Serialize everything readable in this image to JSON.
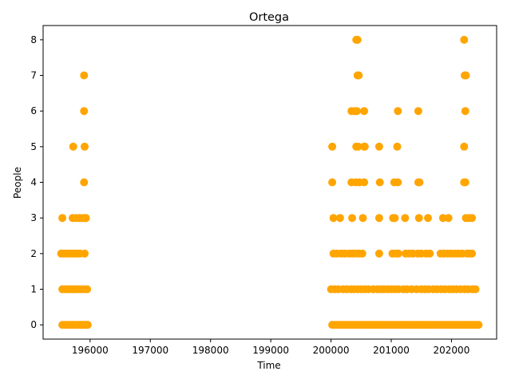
{
  "chart_data": {
    "type": "scatter",
    "title": "Ortega",
    "xlabel": "Time",
    "ylabel": "People",
    "xlim": [
      195220,
      202750
    ],
    "ylim": [
      -0.4,
      8.4
    ],
    "xticks": [
      196000,
      197000,
      198000,
      199000,
      200000,
      201000,
      202000
    ],
    "xtick_labels": [
      "196000",
      "197000",
      "198000",
      "199000",
      "200000",
      "201000",
      "202000"
    ],
    "yticks": [
      0,
      1,
      2,
      3,
      4,
      5,
      6,
      7,
      8
    ],
    "ytick_labels": [
      "0",
      "1",
      "2",
      "3",
      "4",
      "5",
      "6",
      "7",
      "8"
    ],
    "grid": false,
    "legend": "none",
    "marker_color": "#FFA500",
    "series": [
      {
        "x": [
          195540,
          195580,
          195620,
          195660,
          195690,
          195720,
          195760,
          195800,
          195830,
          195860,
          195900,
          195940,
          195960,
          195540,
          195590,
          195640,
          195680,
          195720,
          195760,
          195800,
          195850,
          195900,
          195950,
          195520,
          195560,
          195610,
          195650,
          195700,
          195740,
          195780,
          195830,
          195910,
          195540,
          195710,
          195770,
          195820,
          195870,
          195910,
          195930,
          195900,
          195720,
          195910,
          195900,
          195900,
          200020,
          200060,
          200100,
          200140,
          200180,
          200220,
          200260,
          200300,
          200340,
          200380,
          200420,
          200460,
          200500,
          200540,
          200580,
          200620,
          200660,
          200700,
          200740,
          200780,
          200820,
          200860,
          200900,
          200940,
          200980,
          201020,
          201060,
          201100,
          201140,
          201180,
          201220,
          201260,
          201300,
          201340,
          201380,
          201420,
          201460,
          201500,
          201540,
          201580,
          201620,
          201660,
          201700,
          201740,
          201780,
          201820,
          201860,
          201900,
          201940,
          201980,
          202020,
          202060,
          202100,
          202140,
          202180,
          202220,
          202260,
          202300,
          202340,
          202380,
          202420,
          202450,
          200000,
          200060,
          200120,
          200200,
          200260,
          200330,
          200380,
          200440,
          200500,
          200560,
          200620,
          200700,
          200770,
          200830,
          200880,
          200940,
          201000,
          201060,
          201120,
          201200,
          201260,
          201340,
          201420,
          201500,
          201560,
          201620,
          201700,
          201760,
          201830,
          201890,
          201960,
          202020,
          202080,
          202150,
          202220,
          202280,
          202350,
          202400,
          200040,
          200100,
          200170,
          200230,
          200300,
          200350,
          200400,
          200460,
          200520,
          200800,
          201020,
          201080,
          201120,
          201240,
          201300,
          201360,
          201440,
          201500,
          201580,
          201640,
          201820,
          201880,
          201940,
          202000,
          202060,
          202120,
          202180,
          202260,
          202300,
          202340,
          200040,
          200150,
          200350,
          200530,
          200800,
          201030,
          201060,
          201230,
          201460,
          201610,
          201860,
          201950,
          202240,
          202290,
          202340,
          200020,
          200340,
          200410,
          200470,
          200550,
          200810,
          201050,
          201110,
          201450,
          201470,
          202210,
          202230,
          200020,
          200420,
          200450,
          200550,
          200560,
          200800,
          201100,
          202210,
          200340,
          200400,
          200430,
          200550,
          201110,
          201450,
          202230,
          200440,
          200460,
          202220,
          202240,
          200420,
          200440,
          202210
        ],
        "y": [
          0,
          0,
          0,
          0,
          0,
          0,
          0,
          0,
          0,
          0,
          0,
          0,
          0,
          1,
          1,
          1,
          1,
          1,
          1,
          1,
          1,
          1,
          1,
          2,
          2,
          2,
          2,
          2,
          2,
          2,
          2,
          2,
          3,
          3,
          3,
          3,
          3,
          3,
          3,
          4,
          5,
          5,
          6,
          7,
          0,
          0,
          0,
          0,
          0,
          0,
          0,
          0,
          0,
          0,
          0,
          0,
          0,
          0,
          0,
          0,
          0,
          0,
          0,
          0,
          0,
          0,
          0,
          0,
          0,
          0,
          0,
          0,
          0,
          0,
          0,
          0,
          0,
          0,
          0,
          0,
          0,
          0,
          0,
          0,
          0,
          0,
          0,
          0,
          0,
          0,
          0,
          0,
          0,
          0,
          0,
          0,
          0,
          0,
          0,
          0,
          0,
          0,
          0,
          0,
          0,
          0,
          1,
          1,
          1,
          1,
          1,
          1,
          1,
          1,
          1,
          1,
          1,
          1,
          1,
          1,
          1,
          1,
          1,
          1,
          1,
          1,
          1,
          1,
          1,
          1,
          1,
          1,
          1,
          1,
          1,
          1,
          1,
          1,
          1,
          1,
          1,
          1,
          1,
          1,
          2,
          2,
          2,
          2,
          2,
          2,
          2,
          2,
          2,
          2,
          2,
          2,
          2,
          2,
          2,
          2,
          2,
          2,
          2,
          2,
          2,
          2,
          2,
          2,
          2,
          2,
          2,
          2,
          2,
          2,
          3,
          3,
          3,
          3,
          3,
          3,
          3,
          3,
          3,
          3,
          3,
          3,
          3,
          3,
          3,
          4,
          4,
          4,
          4,
          4,
          4,
          4,
          4,
          4,
          4,
          4,
          4,
          5,
          5,
          5,
          5,
          5,
          5,
          5,
          5,
          6,
          6,
          6,
          6,
          6,
          6,
          6,
          7,
          7,
          7,
          7,
          8,
          8,
          8
        ]
      }
    ]
  }
}
